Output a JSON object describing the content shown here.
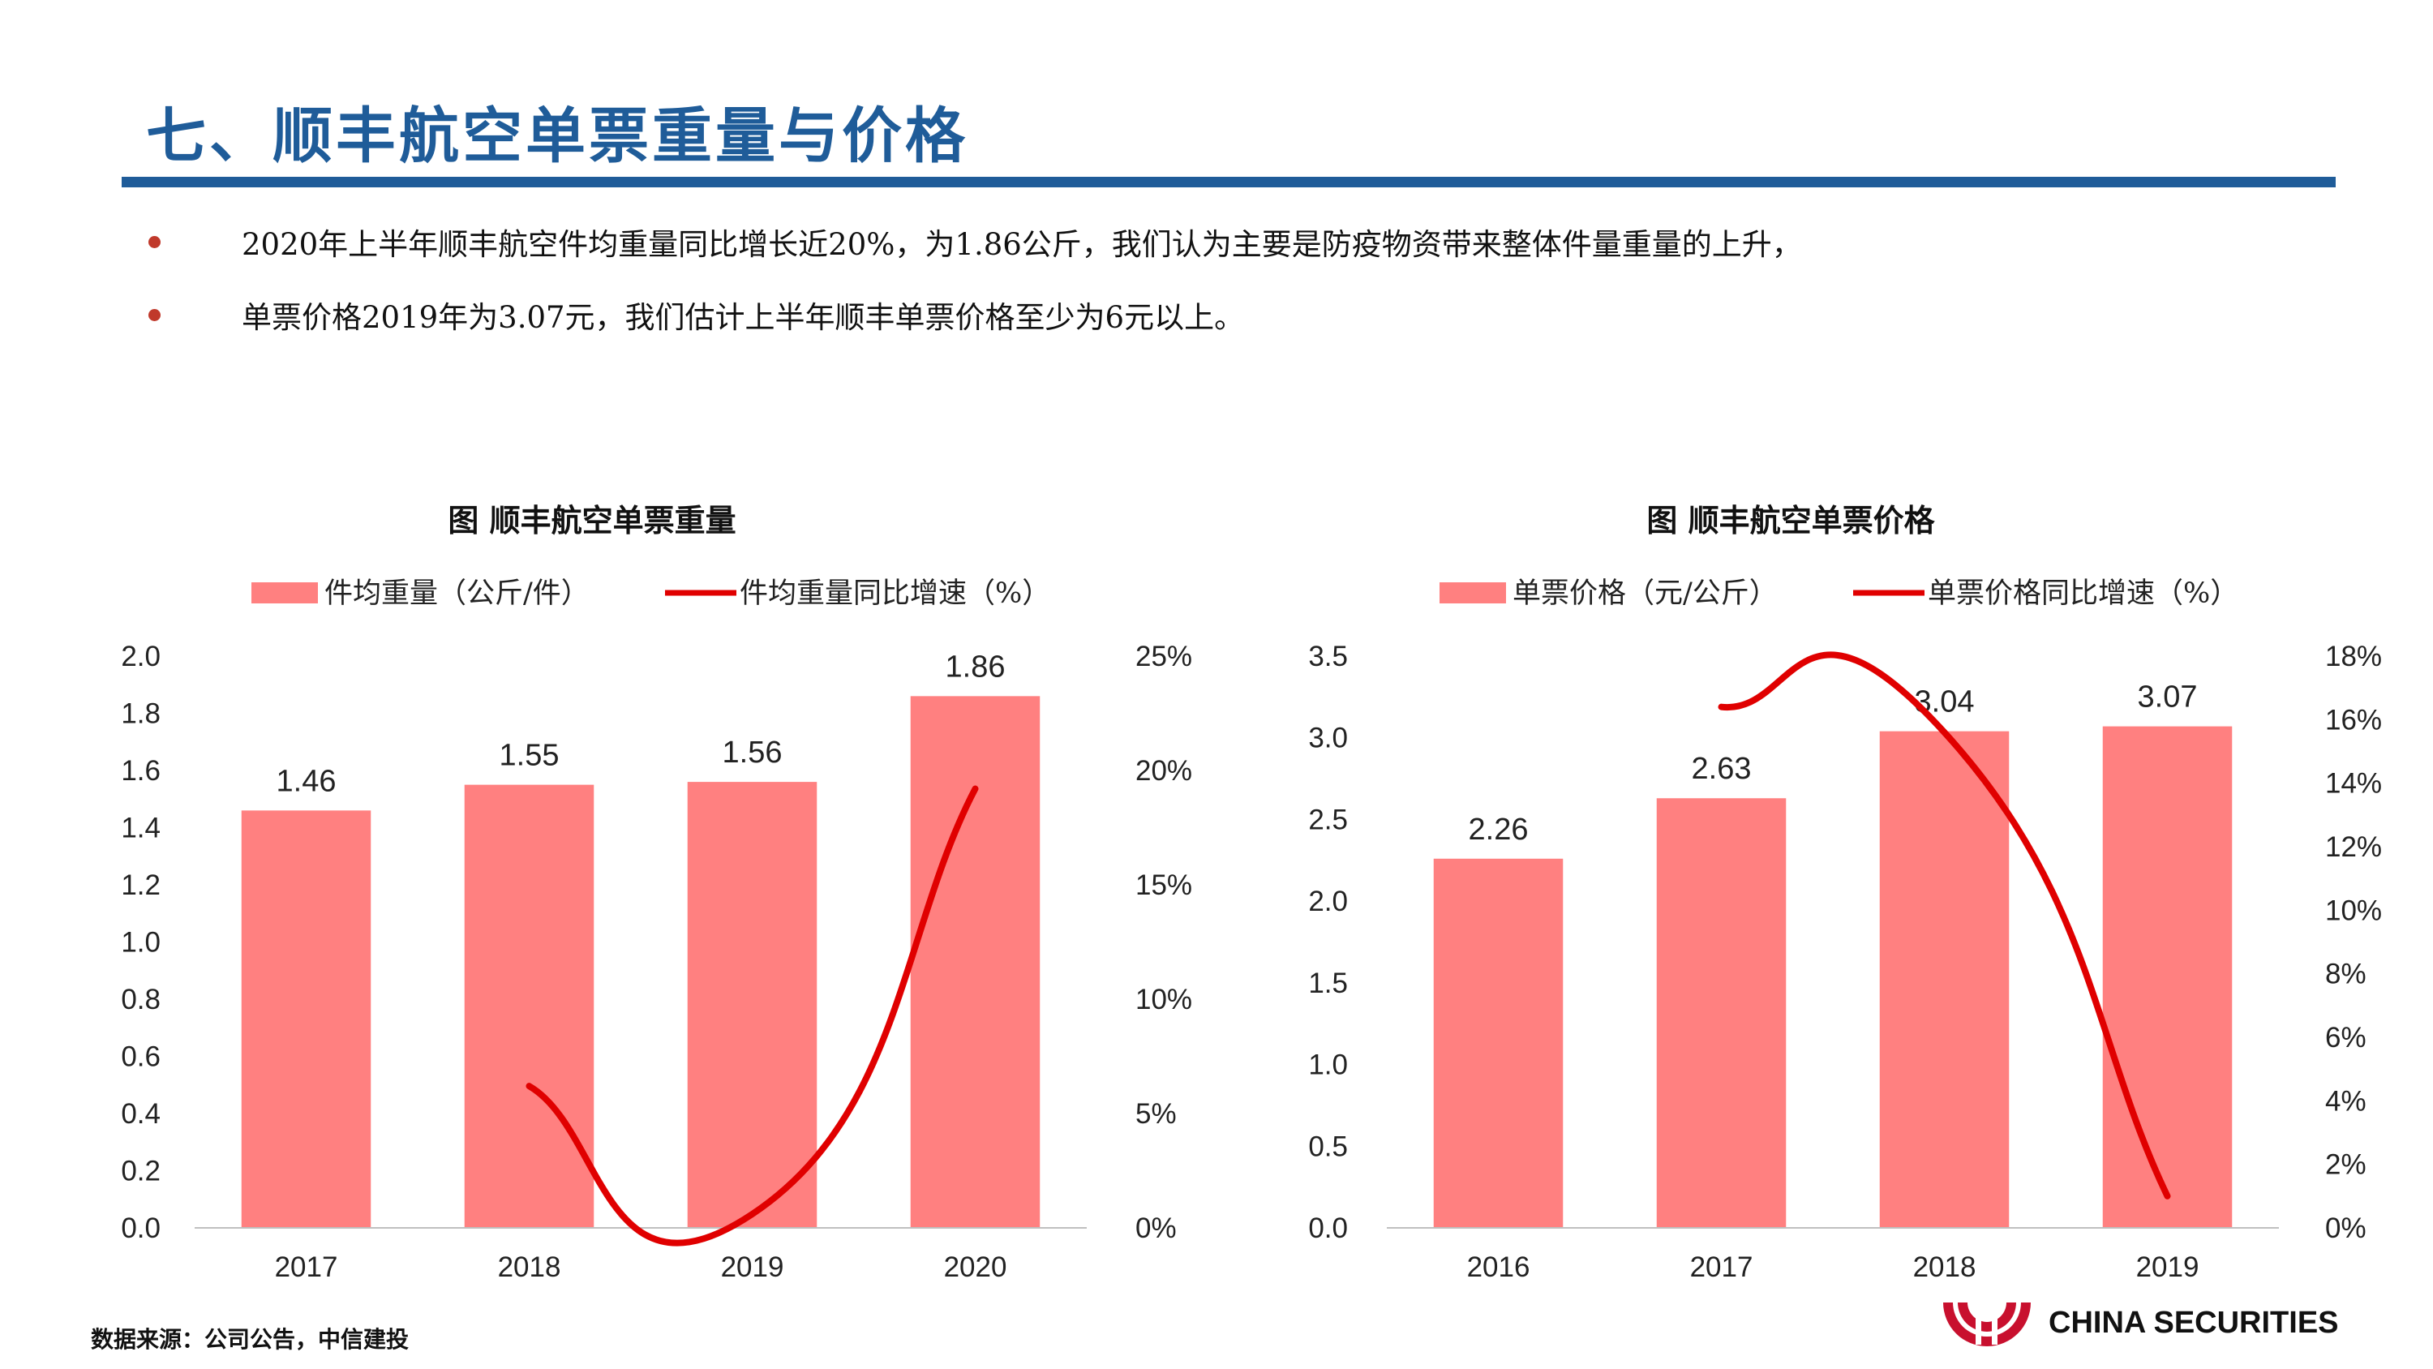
{
  "page": {
    "title": "七、顺丰航空单票重量与价格",
    "bullets": [
      "2020年上半年顺丰航空件均重量同比增长近20%，为1.86公斤，我们认为主要是防疫物资带来整体件量重量的上升，",
      "单票价格2019年为3.07元，我们估计上半年顺丰单票价格至少为6元以上。"
    ],
    "footer": "数据来源：公司公告，中信建投",
    "logo_text": "CHINA SECURITIES"
  },
  "colors": {
    "title": "#1F5C99",
    "bar": "#FF8080",
    "line": "#E00000",
    "bullet_dot": "#C0392B"
  },
  "chart_data": [
    {
      "type": "bar",
      "title": "图  顺丰航空单票重量",
      "categories": [
        "2017",
        "2018",
        "2019",
        "2020"
      ],
      "series": [
        {
          "name": "件均重量（公斤/件）",
          "kind": "bar",
          "axis": "left",
          "values": [
            1.46,
            1.55,
            1.56,
            1.86
          ],
          "data_labels": [
            "1.46",
            "1.55",
            "1.56",
            "1.86"
          ]
        },
        {
          "name": "件均重量同比增速（%）",
          "kind": "line",
          "axis": "right",
          "values": [
            null,
            6.2,
            0.6,
            19.2
          ]
        }
      ],
      "y_left": {
        "min": 0,
        "max": 2.0,
        "ticks": [
          "0.0",
          "0.2",
          "0.4",
          "0.6",
          "0.8",
          "1.0",
          "1.2",
          "1.4",
          "1.6",
          "1.8",
          "2.0"
        ]
      },
      "y_right": {
        "min": 0,
        "max": 25,
        "ticks": [
          "0%",
          "5%",
          "10%",
          "15%",
          "20%",
          "25%"
        ]
      },
      "legend_position": "top",
      "grid": false
    },
    {
      "type": "bar",
      "title": "图  顺丰航空单票价格",
      "categories": [
        "2016",
        "2017",
        "2018",
        "2019"
      ],
      "series": [
        {
          "name": "单票价格（元/公斤）",
          "kind": "bar",
          "axis": "left",
          "values": [
            2.26,
            2.63,
            3.04,
            3.07
          ],
          "data_labels": [
            "2.26",
            "2.63",
            "3.04",
            "3.07"
          ]
        },
        {
          "name": "单票价格同比增速（%）",
          "kind": "line",
          "axis": "right",
          "values": [
            null,
            16.4,
            15.6,
            1.0
          ]
        }
      ],
      "y_left": {
        "min": 0,
        "max": 3.5,
        "ticks": [
          "0.0",
          "0.5",
          "1.0",
          "1.5",
          "2.0",
          "2.5",
          "3.0",
          "3.5"
        ]
      },
      "y_right": {
        "min": 0,
        "max": 18,
        "ticks": [
          "0%",
          "2%",
          "4%",
          "6%",
          "8%",
          "10%",
          "12%",
          "14%",
          "16%",
          "18%"
        ]
      },
      "legend_position": "top",
      "grid": false
    }
  ]
}
